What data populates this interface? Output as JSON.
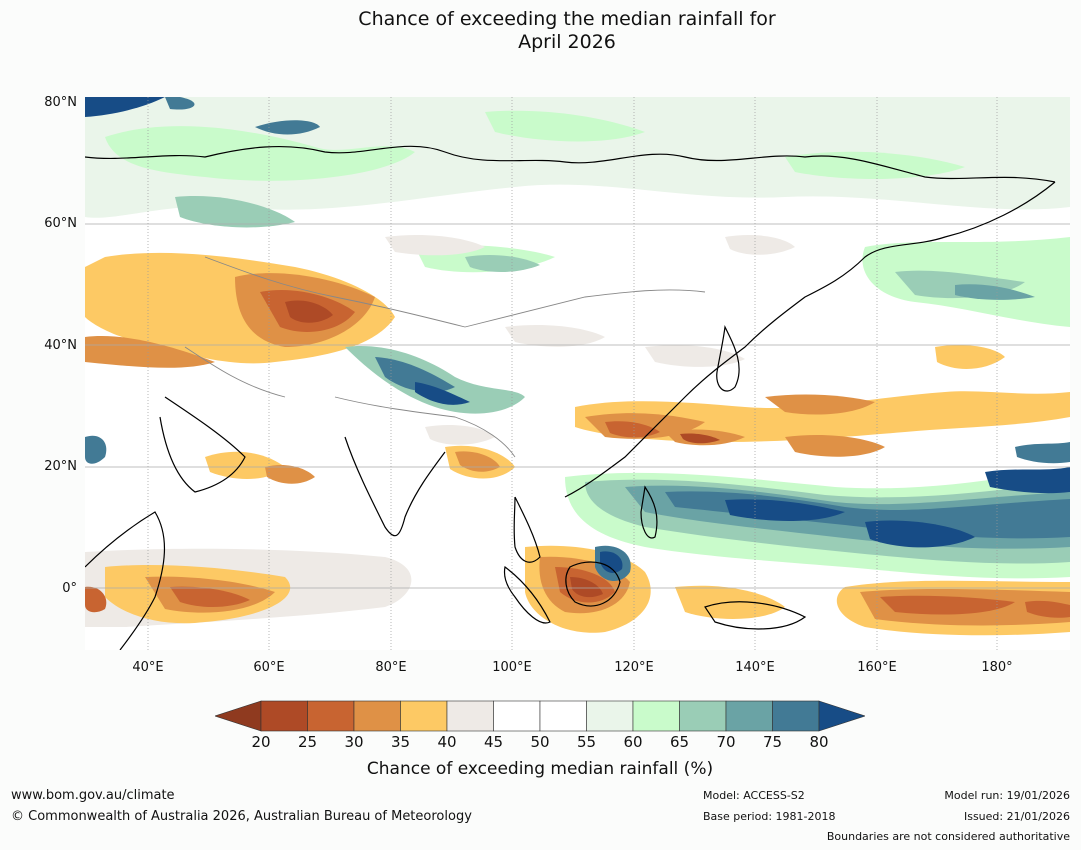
{
  "title": {
    "line1": "Chance of exceeding the median rainfall for",
    "line2": "April 2026"
  },
  "axes": {
    "lat_labels": [
      "80°N",
      "60°N",
      "40°N",
      "20°N",
      "0°"
    ],
    "lon_labels": [
      "40°E",
      "60°E",
      "80°E",
      "100°E",
      "120°E",
      "140°E",
      "160°E",
      "180°"
    ],
    "lat_range_deg": [
      -10,
      80
    ],
    "lon_range_deg": [
      30,
      192
    ]
  },
  "colorbar": {
    "ticks": [
      "20",
      "25",
      "30",
      "35",
      "40",
      "45",
      "50",
      "55",
      "60",
      "65",
      "70",
      "75",
      "80"
    ],
    "colors": [
      "#8f3a1f",
      "#ae4a26",
      "#c86431",
      "#df9146",
      "#fdc964",
      "#eeeae6",
      "#ffffff",
      "#ffffff",
      "#eaf5ea",
      "#c9fbcb",
      "#9acdb6",
      "#6aa3a5",
      "#427a95",
      "#174c86"
    ],
    "label": "Chance of exceeding median rainfall (%)"
  },
  "footer": {
    "website": "www.bom.gov.au/climate",
    "copyright": "© Commonwealth of Australia 2026, Australian Bureau of Meteorology",
    "model": "Model: ACCESS-S2",
    "base_period": "Base period: 1981-2018",
    "model_run": "Model run: 19/01/2026",
    "issued": "Issued: 21/01/2026",
    "disclaimer": "Boundaries are not considered authoritative"
  }
}
